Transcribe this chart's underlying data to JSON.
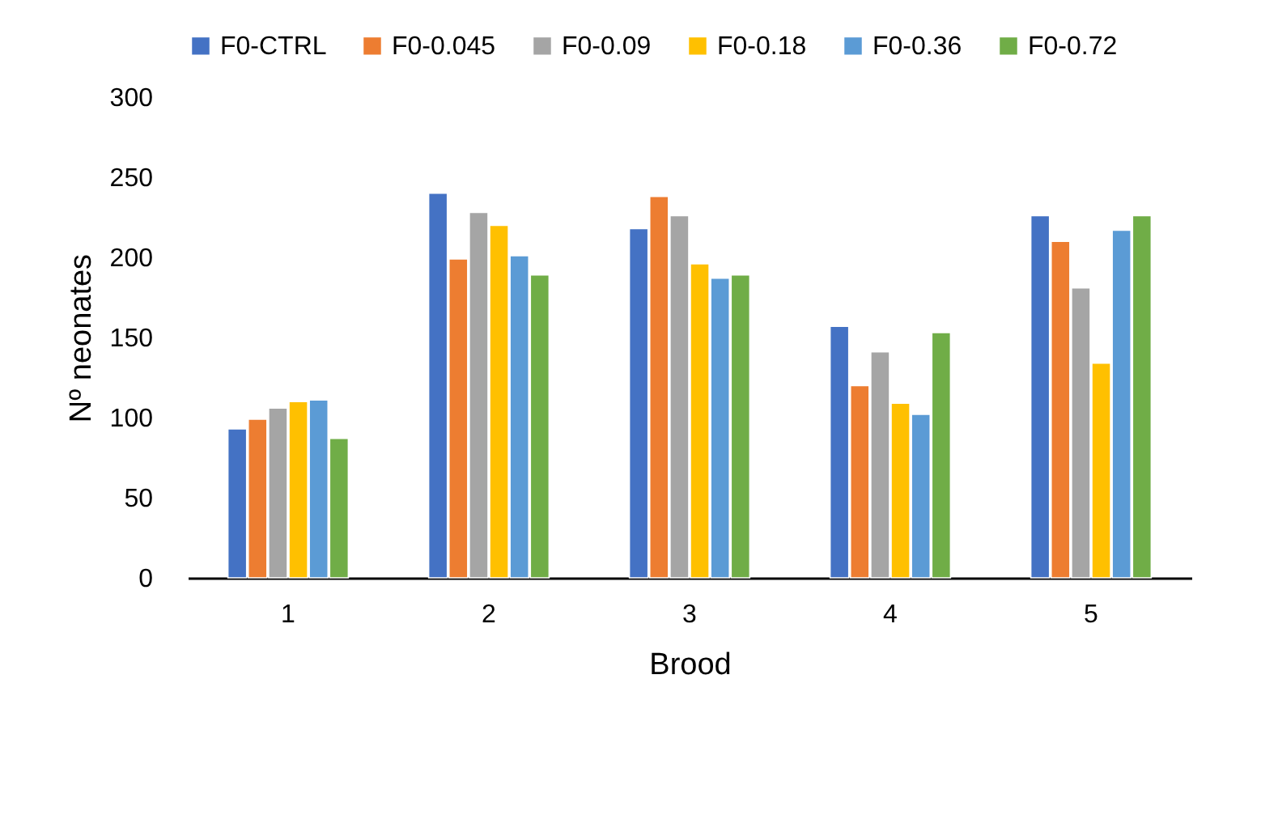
{
  "chart_data": {
    "type": "bar",
    "xlabel": "Brood",
    "ylabel": "Nº neonates",
    "categories": [
      "1",
      "2",
      "3",
      "4",
      "5"
    ],
    "series": [
      {
        "name": "F0-CTRL",
        "color": "#4472c4",
        "values": [
          93,
          240,
          218,
          157,
          226
        ]
      },
      {
        "name": "F0-0.045",
        "color": "#ed7d31",
        "values": [
          99,
          199,
          238,
          120,
          210
        ]
      },
      {
        "name": "F0-0.09",
        "color": "#a5a5a5",
        "values": [
          106,
          228,
          226,
          141,
          181
        ]
      },
      {
        "name": "F0-0.18",
        "color": "#ffc000",
        "values": [
          110,
          220,
          196,
          109,
          134
        ]
      },
      {
        "name": "F0-0.36",
        "color": "#5b9bd5",
        "values": [
          111,
          201,
          187,
          102,
          217
        ]
      },
      {
        "name": "F0-0.72",
        "color": "#70ad47",
        "values": [
          87,
          189,
          189,
          153,
          226
        ]
      }
    ],
    "ylim": [
      0,
      300
    ],
    "yticks": [
      0,
      50,
      100,
      150,
      200,
      250,
      300
    ],
    "grid": false,
    "legend": "top"
  }
}
